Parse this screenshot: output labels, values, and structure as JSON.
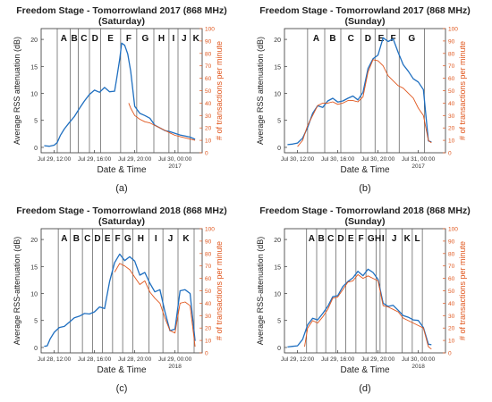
{
  "chart_data": [
    {
      "type": "line",
      "panel_label": "(a)",
      "title": "Freedom Stage - Tomorrowland 2017 (868 MHz)",
      "subtitle": "(Saturday)",
      "xlabel": "Date & Time",
      "ylabel": "Average RSS attenuation (dB)",
      "y2label": "# of transactions per minute",
      "x_ticks": [
        "Jul 29, 12:00",
        "Jul 29, 16:00",
        "Jul 29, 20:00",
        "Jul 30, 00:00"
      ],
      "x_year_label": "2017",
      "x_range_hours": [
        10.7,
        26.7
      ],
      "x_tick_hours": [
        12,
        16,
        20,
        24
      ],
      "ylim": [
        -1,
        22
      ],
      "y_ticks": [
        0,
        5,
        10,
        15,
        20
      ],
      "y2lim": [
        0,
        100
      ],
      "y2_ticks": [
        0,
        10,
        20,
        30,
        40,
        50,
        60,
        70,
        80,
        90,
        100
      ],
      "zones": [
        "A",
        "B",
        "C",
        "D",
        "E",
        "F",
        "G",
        "H",
        "I",
        "J",
        "K"
      ],
      "zone_boundaries_hours": [
        12.3,
        13.6,
        14.4,
        15.5,
        16.6,
        18.6,
        20.2,
        21.9,
        23.4,
        24.3,
        25.5
      ],
      "series": [
        {
          "name": "",
          "axis": "left",
          "color": "#1f6fc0",
          "x": [
            11,
            11.5,
            12,
            12.3,
            12.6,
            13,
            13.5,
            14,
            14.5,
            15,
            15.5,
            16,
            16.5,
            17,
            17.5,
            18,
            18.2,
            18.5,
            18.7,
            19,
            19.3,
            19.6,
            20,
            20.5,
            21,
            21.5,
            22,
            22.5,
            23,
            23.5,
            24,
            24.5,
            25,
            25.5,
            26
          ],
          "y": [
            0.3,
            0.2,
            0.4,
            0.9,
            2.2,
            3.4,
            4.6,
            5.7,
            7.2,
            8.6,
            9.8,
            10.6,
            10.2,
            11.1,
            10.3,
            10.4,
            12.7,
            16.3,
            19.3,
            18.9,
            17.3,
            14.1,
            7.6,
            6.3,
            5.9,
            5.4,
            4.1,
            3.6,
            3.1,
            2.9,
            2.6,
            2.3,
            2.1,
            1.9,
            1.5
          ]
        },
        {
          "name": "",
          "axis": "right",
          "color": "#e0561d",
          "x": [
            19.4,
            19.6,
            20,
            20.5,
            21,
            21.5,
            22,
            22.5,
            23,
            23.5,
            24,
            24.5,
            25,
            25.5,
            26
          ],
          "y": [
            40,
            36,
            30,
            27,
            25,
            24,
            22,
            20,
            18,
            16,
            14,
            13,
            12,
            11,
            10
          ]
        }
      ]
    },
    {
      "type": "line",
      "panel_label": "(b)",
      "title": "Freedom Stage - Tomorrowland 2017 (868 MHz)",
      "subtitle": "(Sunday)",
      "xlabel": "Date & Time",
      "ylabel": "Average RSS attenuation (dB)",
      "y2label": "# of transactions per minute",
      "x_ticks": [
        "Jul 30, 12:00",
        "Jul 30, 16:00",
        "Jul 30, 20:00",
        "Jul 31, 00:00"
      ],
      "x_year_label": "2017",
      "x_range_hours": [
        10.7,
        26.7
      ],
      "x_tick_hours": [
        12,
        16,
        20,
        24
      ],
      "ylim": [
        -1,
        22
      ],
      "y_ticks": [
        0,
        5,
        10,
        15,
        20
      ],
      "y2lim": [
        0,
        100
      ],
      "y2_ticks": [
        0,
        10,
        20,
        30,
        40,
        50,
        60,
        70,
        80,
        90,
        100
      ],
      "zones": [
        "A",
        "B",
        "C",
        "D",
        "E",
        "F",
        "G"
      ],
      "zone_boundaries_hours": [
        13.0,
        14.7,
        16.3,
        18.3,
        19.7,
        20.9,
        22.1,
        24.6
      ],
      "series": [
        {
          "name": "",
          "axis": "left",
          "color": "#1f6fc0",
          "x": [
            11,
            11.5,
            12,
            12.5,
            13,
            13.5,
            14,
            14.5,
            15,
            15.5,
            16,
            16.5,
            17,
            17.5,
            18,
            18.5,
            19,
            19.5,
            20,
            20.5,
            21,
            21.5,
            22,
            22.5,
            23,
            23.5,
            24,
            24.5,
            25,
            25.3
          ],
          "y": [
            0.5,
            0.6,
            0.8,
            1.7,
            3.7,
            6.3,
            7.7,
            7.4,
            8.6,
            9.1,
            8.4,
            8.6,
            9.1,
            9.5,
            8.8,
            10.2,
            14.6,
            16.4,
            17.1,
            20.3,
            19.6,
            20.1,
            17.6,
            15.3,
            14.1,
            12.7,
            12.1,
            10.7,
            1.2,
            1.0
          ]
        },
        {
          "name": "",
          "axis": "right",
          "color": "#e0561d",
          "x": [
            12,
            12.5,
            13,
            13.5,
            14,
            14.5,
            15,
            15.5,
            16,
            16.5,
            17,
            17.5,
            18,
            18.5,
            19,
            19.5,
            20,
            20.5,
            21,
            21.5,
            22,
            22.5,
            23,
            23.5,
            24,
            24.5,
            25,
            25.3
          ],
          "y": [
            5,
            10,
            22,
            30,
            38,
            40,
            40,
            41,
            39,
            40,
            42,
            42,
            41,
            45,
            65,
            75,
            74,
            70,
            62,
            58,
            54,
            52,
            48,
            44,
            36,
            30,
            10,
            8
          ]
        }
      ]
    },
    {
      "type": "line",
      "panel_label": "(c)",
      "title": "Freedom Stage - Tomorrowland 2018 (868 MHz)",
      "subtitle": "(Saturday)",
      "xlabel": "Date & Time",
      "ylabel": "Average RSS-attenuation (dB)",
      "y2label": "# of transactions per minute",
      "x_ticks": [
        "Jul 28, 12:00",
        "Jul 28, 16:00",
        "Jul 28, 20:00",
        "Jul 29, 00:00"
      ],
      "x_year_label": "2018",
      "x_range_hours": [
        10.7,
        26.7
      ],
      "x_tick_hours": [
        12,
        16,
        20,
        24
      ],
      "ylim": [
        -1,
        22
      ],
      "y_ticks": [
        0,
        5,
        10,
        15,
        20
      ],
      "y2lim": [
        0,
        100
      ],
      "y2_ticks": [
        0,
        10,
        20,
        30,
        40,
        50,
        60,
        70,
        80,
        90,
        100
      ],
      "zones": [
        "A",
        "B",
        "C",
        "D",
        "E",
        "F",
        "G",
        "H",
        "I",
        "J",
        "K"
      ],
      "zone_boundaries_hours": [
        12.4,
        13.6,
        14.8,
        15.8,
        16.8,
        17.8,
        18.8,
        19.8,
        21.4,
        22.8,
        24.3,
        25.9
      ],
      "series": [
        {
          "name": "",
          "axis": "left",
          "color": "#1f6fc0",
          "x": [
            11,
            11.3,
            11.6,
            12,
            12.5,
            13,
            13.5,
            14,
            14.5,
            15,
            15.5,
            16,
            16.5,
            17,
            17.5,
            18,
            18.5,
            19,
            19.5,
            20,
            20.5,
            21,
            21.5,
            22,
            22.5,
            23,
            23.5,
            24,
            24.5,
            25,
            25.5,
            26
          ],
          "y": [
            0.2,
            0.3,
            1.6,
            2.8,
            3.7,
            3.9,
            4.7,
            5.5,
            5.8,
            6.3,
            6.2,
            6.6,
            7.5,
            7.2,
            12.2,
            15.7,
            17.3,
            16.1,
            16.8,
            16.0,
            13.4,
            13.9,
            11.9,
            10.3,
            10.7,
            6.6,
            3.1,
            3.4,
            10.5,
            10.7,
            10.0,
            1.2
          ]
        },
        {
          "name": "",
          "axis": "right",
          "color": "#e0561d",
          "x": [
            18,
            18.5,
            19,
            19.5,
            20,
            20.5,
            21,
            21.5,
            22,
            22.5,
            23,
            23.5,
            24,
            24.5,
            25,
            25.5,
            26
          ],
          "y": [
            65,
            72,
            70,
            67,
            61,
            55,
            58,
            49,
            44,
            40,
            28,
            18,
            16,
            40,
            41,
            38,
            5
          ]
        }
      ]
    },
    {
      "type": "line",
      "panel_label": "(d)",
      "title": "Freedom Stage - Tomorrowland 2018 (868 MHz)",
      "subtitle": "(Sunday)",
      "xlabel": "Date & Time",
      "ylabel": "Average RSS-attenuation (dB)",
      "y2label": "# of transactions per minute",
      "x_ticks": [
        "Jul 29, 12:00",
        "Jul 29, 16:00",
        "Jul 29, 20:00",
        "Jul 30, 00:00"
      ],
      "x_year_label": "2018",
      "x_range_hours": [
        10.7,
        26.7
      ],
      "x_tick_hours": [
        12,
        16,
        20,
        24
      ],
      "ylim": [
        -1,
        22
      ],
      "y_ticks": [
        0,
        5,
        10,
        15,
        20
      ],
      "y2lim": [
        0,
        100
      ],
      "y2_ticks": [
        0,
        10,
        20,
        30,
        40,
        50,
        60,
        70,
        80,
        90,
        100
      ],
      "zones": [
        "A",
        "B",
        "C",
        "D",
        "E",
        "F",
        "G",
        "H",
        "I",
        "J",
        "K",
        "L"
      ],
      "zone_boundaries_hours": [
        12.9,
        13.9,
        14.8,
        15.8,
        16.8,
        17.8,
        18.8,
        19.8,
        20.2,
        20.8,
        22.4,
        23.4,
        24.4
      ],
      "series": [
        {
          "name": "",
          "axis": "left",
          "color": "#1f6fc0",
          "x": [
            11,
            11.5,
            12,
            12.5,
            13,
            13.5,
            14,
            14.5,
            15,
            15.5,
            16,
            16.5,
            17,
            17.5,
            18,
            18.5,
            19,
            19.5,
            20,
            20.5,
            21,
            21.5,
            22,
            22.5,
            23,
            23.5,
            24,
            24.5,
            25,
            25.3
          ],
          "y": [
            0.1,
            0.2,
            0.3,
            1.5,
            4.2,
            5.4,
            5.1,
            6.3,
            7.6,
            9.4,
            9.6,
            11.3,
            12.2,
            12.9,
            14.1,
            13.3,
            14.5,
            13.9,
            12.6,
            8.2,
            7.6,
            7.8,
            6.9,
            5.9,
            5.6,
            5.1,
            5.0,
            3.7,
            0.6,
            0.5
          ]
        },
        {
          "name": "",
          "axis": "right",
          "color": "#e0561d",
          "x": [
            12.7,
            13,
            13.5,
            14,
            14.5,
            15,
            15.5,
            16,
            16.5,
            17,
            17.5,
            18,
            18.5,
            19,
            19.5,
            20,
            20.5,
            21,
            21.5,
            22,
            22.5,
            23,
            23.5,
            24,
            24.5,
            25,
            25.3
          ],
          "y": [
            5,
            20,
            26,
            24,
            29,
            35,
            44,
            45,
            51,
            57,
            58,
            63,
            60,
            62,
            60,
            58,
            38,
            37,
            35,
            33,
            28,
            26,
            24,
            22,
            20,
            5,
            3
          ]
        }
      ]
    }
  ]
}
